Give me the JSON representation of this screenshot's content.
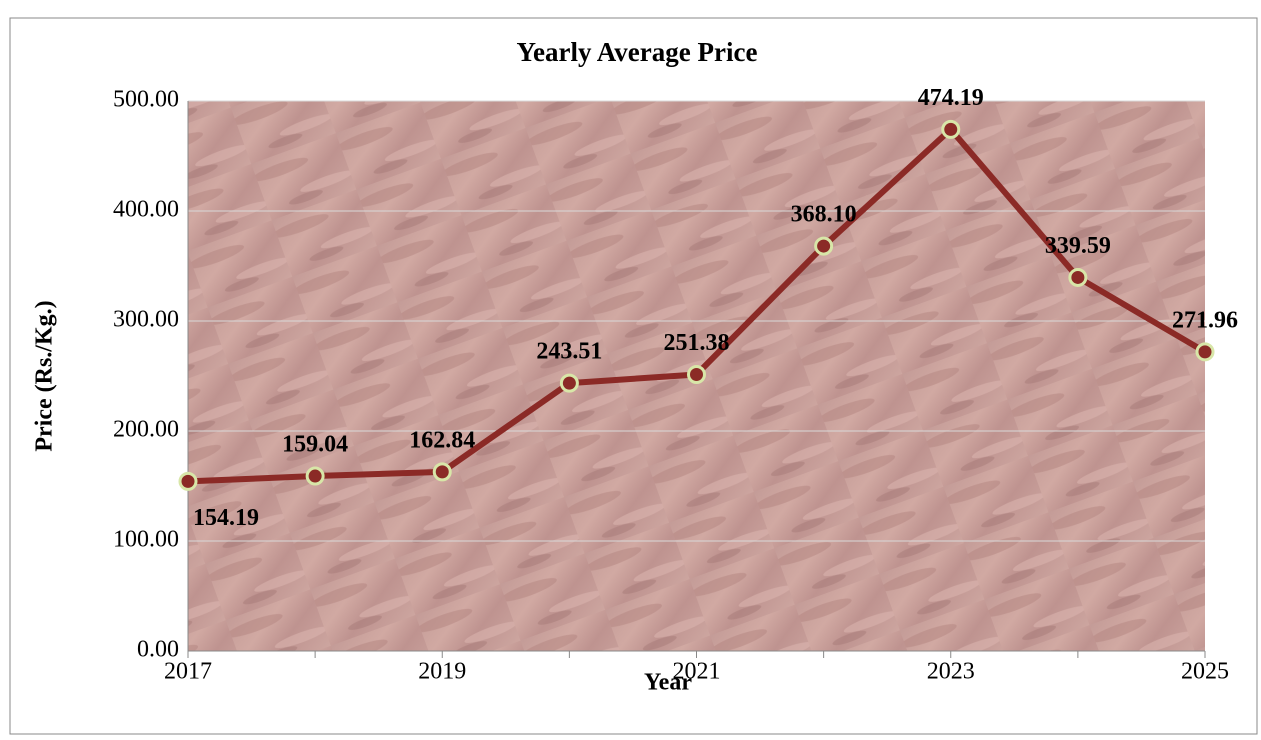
{
  "chart_data": {
    "type": "line",
    "title": "Yearly Average Price",
    "x_label": "Year",
    "y_label": "Price (Rs./Kg.)",
    "x": [
      2017,
      2018,
      2019,
      2020,
      2021,
      2022,
      2023,
      2024,
      2025
    ],
    "series": [
      {
        "name": "Yearly Average Price",
        "color": "#8b2a26",
        "values": [
          154.19,
          159.04,
          162.84,
          243.51,
          251.38,
          368.1,
          474.19,
          339.59,
          271.96
        ],
        "value_labels": [
          "154.19",
          "159.04",
          "162.84",
          "243.51",
          "251.38",
          "368.10",
          "474.19",
          "339.59",
          "271.96"
        ]
      }
    ],
    "xlim": [
      2017,
      2025
    ],
    "xticks": [
      2017,
      2019,
      2021,
      2023,
      2025
    ],
    "ylim": [
      0,
      500
    ],
    "yticks": [
      {
        "value": 0,
        "label": "0.00"
      },
      {
        "value": 100,
        "label": "100.00"
      },
      {
        "value": 200,
        "label": "200.00"
      },
      {
        "value": 300,
        "label": "300.00"
      },
      {
        "value": 400,
        "label": "400.00"
      },
      {
        "value": 500,
        "label": "500.00"
      }
    ],
    "grid": true
  }
}
